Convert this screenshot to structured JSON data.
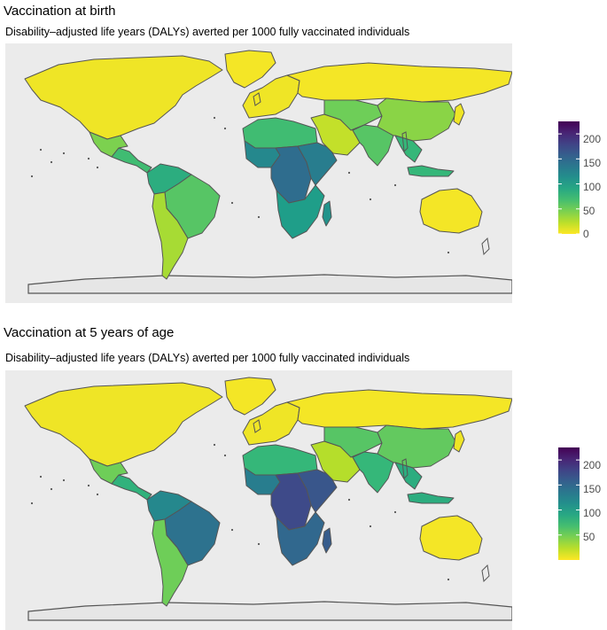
{
  "panels": [
    {
      "title": "Vaccination at birth",
      "subtitle": "Disability–adjusted life years (DALYs) averted per 1000 fully vaccinated individuals",
      "legend": {
        "ticks": [
          "200",
          "150",
          "100",
          "50",
          "0"
        ]
      },
      "scale": {
        "min": 0,
        "max": 225
      },
      "regions": {
        "north_america": 5,
        "greenland": 3,
        "mexico": 45,
        "central_america": 70,
        "south_america_north": 85,
        "brazil": 60,
        "south_america_south": 30,
        "europe": 5,
        "russia": 3,
        "north_africa": 70,
        "west_africa": 120,
        "central_africa": 145,
        "east_africa": 130,
        "southern_africa": 100,
        "madagascar": 110,
        "middle_east": 20,
        "central_asia": 50,
        "south_asia": 60,
        "china": 40,
        "southeast_asia": 75,
        "japan": 5,
        "australia": 3
      }
    },
    {
      "title": "Vaccination at 5 years of age",
      "subtitle": "Disability–adjusted life years (DALYs) averted per 1000 fully vaccinated individuals",
      "legend": {
        "ticks": [
          "200",
          "150",
          "100",
          "50"
        ]
      },
      "scale": {
        "min": 0,
        "max": 225
      },
      "regions": {
        "north_america": 5,
        "greenland": 3,
        "mexico": 50,
        "central_america": 80,
        "south_america_north": 120,
        "brazil": 140,
        "south_america_south": 50,
        "europe": 5,
        "russia": 3,
        "north_africa": 75,
        "west_africa": 130,
        "central_africa": 175,
        "east_africa": 165,
        "southern_africa": 150,
        "madagascar": 160,
        "middle_east": 25,
        "central_asia": 60,
        "south_asia": 75,
        "china": 55,
        "southeast_asia": 85,
        "japan": 5,
        "australia": 3
      }
    }
  ]
}
